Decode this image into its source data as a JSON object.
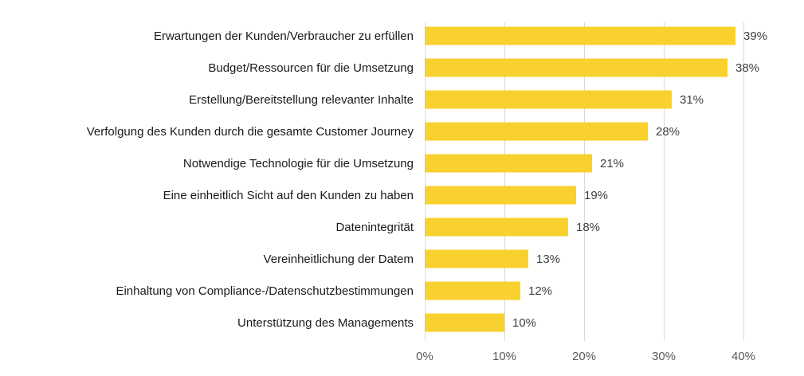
{
  "chart_data": {
    "type": "bar",
    "orientation": "horizontal",
    "title": "",
    "xlabel": "",
    "ylabel": "",
    "categories": [
      "Erwartungen der Kunden/Verbraucher zu erfüllen",
      "Budget/Ressourcen für die Umsetzung",
      "Erstellung/Bereitstellung relevanter Inhalte",
      "Verfolgung des Kunden durch die gesamte Customer Journey",
      "Notwendige Technologie für die Umsetzung",
      "Eine einheitlich Sicht auf den Kunden zu haben",
      "Datenintegrität",
      "Vereinheitlichung der Datem",
      "Einhaltung von Compliance-/Datenschutzbestimmungen",
      "Unterstützung des Managements"
    ],
    "values": [
      39,
      38,
      31,
      28,
      21,
      19,
      18,
      13,
      12,
      10
    ],
    "value_labels": [
      "39%",
      "38%",
      "31%",
      "28%",
      "21%",
      "19%",
      "18%",
      "13%",
      "12%",
      "10%"
    ],
    "unit": "%",
    "xlim": [
      0,
      40
    ],
    "x_ticks": [
      0,
      10,
      20,
      30,
      40
    ],
    "x_tick_labels": [
      "0%",
      "10%",
      "20%",
      "30%",
      "40%"
    ],
    "grid": "vertical",
    "legend": "none",
    "bar_color": "#F8D12F"
  }
}
